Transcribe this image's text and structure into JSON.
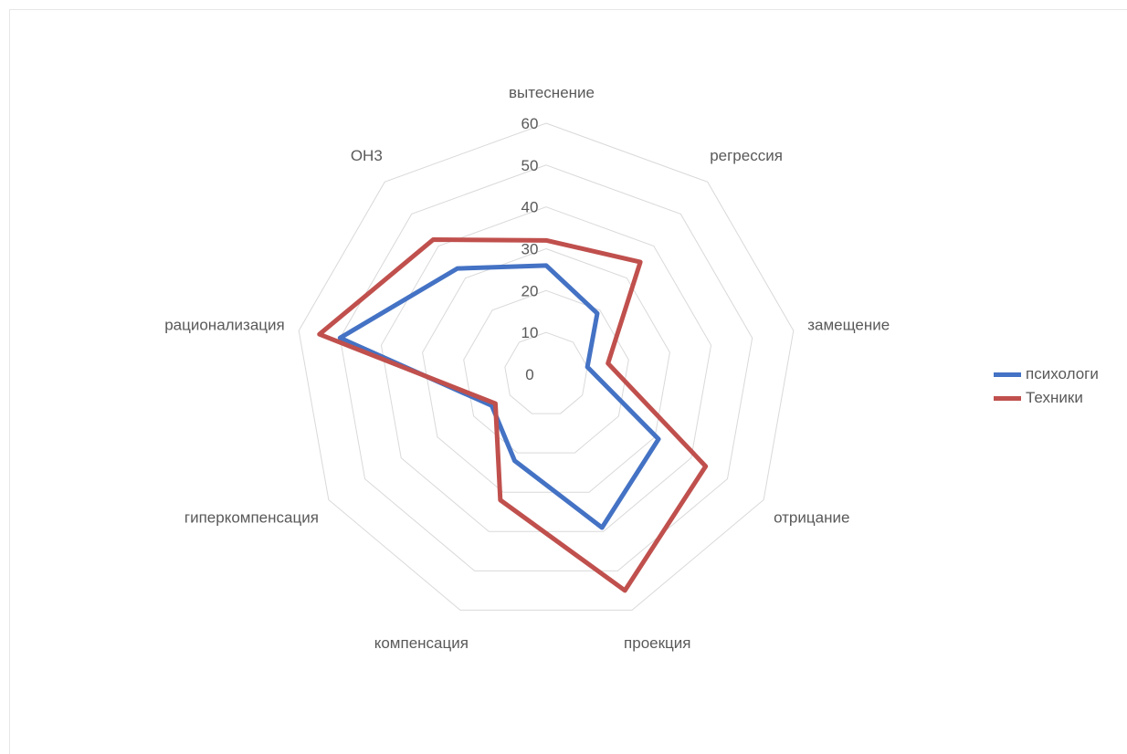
{
  "chart_data": {
    "type": "radar",
    "categories": [
      "вытеснение",
      "регрессия",
      "замещение",
      "отрицание",
      "проекция",
      "компенсация",
      "гиперкомпенсация",
      "рационализация",
      "ОН3"
    ],
    "series": [
      {
        "name": "психологи",
        "color": "#4472C4",
        "values": [
          26,
          19,
          10,
          31,
          39,
          22,
          15,
          50,
          33
        ]
      },
      {
        "name": "Техники",
        "color": "#C0504D",
        "values": [
          32,
          35,
          15,
          44,
          55,
          32,
          14,
          55,
          42
        ]
      }
    ],
    "r_ticks": [
      "0",
      "10",
      "20",
      "30",
      "40",
      "50",
      "60"
    ],
    "rlim": [
      0,
      60
    ],
    "grid": true,
    "legend_position": "right"
  }
}
